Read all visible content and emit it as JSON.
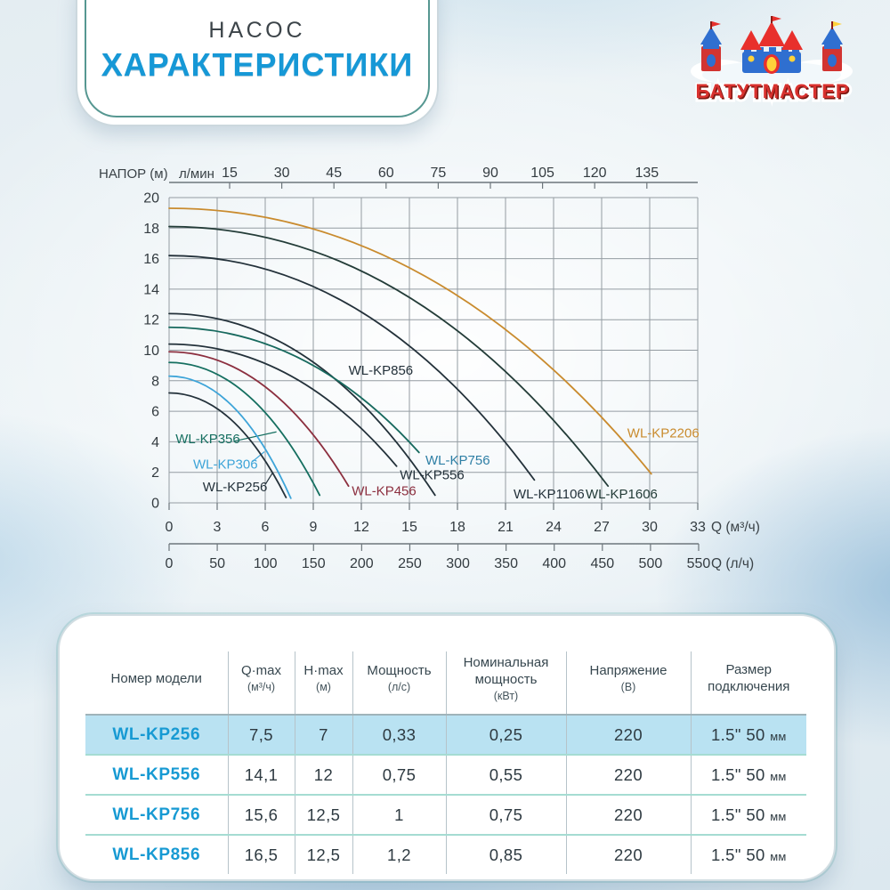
{
  "header": {
    "subtitle": "НАСОС",
    "title": "ХАРАКТЕРИСТИКИ"
  },
  "logo": {
    "text": "БАТУТМАСТЕР"
  },
  "chart_data": {
    "type": "line",
    "title": "Pump head-flow curves",
    "grid": true,
    "y_axis": {
      "label": "НАПОР (м)",
      "min": 0,
      "max": 20,
      "step": 2,
      "ticks": [
        0,
        2,
        4,
        6,
        8,
        10,
        12,
        14,
        16,
        18,
        20
      ]
    },
    "x_axis_top": {
      "label": "л/мин",
      "ticks": [
        15,
        30,
        45,
        60,
        75,
        90,
        105,
        120,
        135
      ]
    },
    "x_axis_bottom": {
      "label": "Q (м³/ч)",
      "min": 0,
      "max": 33,
      "ticks": [
        0,
        3,
        6,
        9,
        12,
        15,
        18,
        21,
        24,
        27,
        30,
        33
      ]
    },
    "x_axis_bottom2": {
      "label": "Q (л/ч)",
      "ticks": [
        0,
        50,
        100,
        150,
        200,
        250,
        300,
        350,
        400,
        450,
        500,
        550
      ]
    },
    "series": [
      {
        "name": "WL-KP2206",
        "color": "#c98b2e",
        "start_head_m": 19.3,
        "end": [
          30.1,
          1.9
        ],
        "label_pos": [
          28.6,
          4.3
        ]
      },
      {
        "name": "WL-KP1606",
        "color": "#233c38",
        "start_head_m": 18.1,
        "end": [
          27.4,
          1.1
        ],
        "label_pos": [
          26.0,
          0.3
        ]
      },
      {
        "name": "WL-KP1106",
        "color": "#23313a",
        "start_head_m": 16.2,
        "end": [
          22.8,
          1.5
        ],
        "label_pos": [
          21.5,
          0.3
        ]
      },
      {
        "name": "WL-KP856",
        "color": "#23313a",
        "start_head_m": 12.4,
        "end": [
          16.6,
          0.5
        ],
        "label_pos": [
          11.2,
          8.4
        ]
      },
      {
        "name": "WL-KP756",
        "color": "#17695e",
        "label_color": "#2e7fa5",
        "start_head_m": 11.5,
        "end": [
          15.6,
          3.3
        ],
        "label_pos": [
          16.0,
          2.5
        ]
      },
      {
        "name": "WL-KP556",
        "color": "#23313a",
        "start_head_m": 10.4,
        "end": [
          14.2,
          2.4
        ],
        "label_pos": [
          14.4,
          1.55
        ]
      },
      {
        "name": "WL-KP456",
        "color": "#8c2f3f",
        "start_head_m": 9.9,
        "end": [
          11.2,
          1.1
        ],
        "label_pos": [
          11.4,
          0.5
        ]
      },
      {
        "name": "WL-KP356",
        "color": "#156f60",
        "start_head_m": 9.2,
        "end": [
          9.4,
          0.5
        ],
        "label_pos": [
          0.4,
          3.9
        ],
        "callout": [
          [
            4.1,
            4.05
          ],
          [
            6.7,
            4.65
          ]
        ]
      },
      {
        "name": "WL-KP306",
        "color": "#3da4d8",
        "start_head_m": 8.3,
        "end": [
          7.6,
          0.3
        ],
        "label_pos": [
          1.5,
          2.25
        ],
        "callout": [
          [
            5.2,
            2.7
          ],
          [
            5.95,
            3.35
          ]
        ]
      },
      {
        "name": "WL-KP256",
        "color": "#23313a",
        "start_head_m": 7.2,
        "end": [
          7.3,
          0.35
        ],
        "label_pos": [
          2.1,
          0.75
        ],
        "callout": [
          [
            6.0,
            1.2
          ],
          [
            6.45,
            1.95
          ]
        ]
      }
    ]
  },
  "table": {
    "headers": [
      {
        "title": "Номер модели",
        "unit": ""
      },
      {
        "title": "Q·max",
        "unit": "(м³/ч)"
      },
      {
        "title": "H·max",
        "unit": "(м)"
      },
      {
        "title": "Мощность",
        "unit": "(л/с)"
      },
      {
        "title": "Номинальная мощность",
        "unit": "(кВт)"
      },
      {
        "title": "Напряжение",
        "unit": "(В)"
      },
      {
        "title": "Размер подключения",
        "unit": ""
      }
    ],
    "rows": [
      {
        "model": "WL-KP256",
        "qmax": "7,5",
        "hmax": "7",
        "power": "0,33",
        "nominal": "0,25",
        "voltage": "220",
        "size": "1.5\" 50",
        "size_unit": "мм",
        "highlight": true
      },
      {
        "model": "WL-KP556",
        "qmax": "14,1",
        "hmax": "12",
        "power": "0,75",
        "nominal": "0,55",
        "voltage": "220",
        "size": "1.5\" 50",
        "size_unit": "мм",
        "highlight": false
      },
      {
        "model": "WL-KP756",
        "qmax": "15,6",
        "hmax": "12,5",
        "power": "1",
        "nominal": "0,75",
        "voltage": "220",
        "size": "1.5\" 50",
        "size_unit": "мм",
        "highlight": false
      },
      {
        "model": "WL-KP856",
        "qmax": "16,5",
        "hmax": "12,5",
        "power": "1,2",
        "nominal": "0,85",
        "voltage": "220",
        "size": "1.5\" 50",
        "size_unit": "мм",
        "highlight": false
      }
    ]
  },
  "colors": {
    "accent_blue": "#1698d6",
    "model_blue": "#179ad3",
    "row_highlight": "#b9e2f2",
    "separator_teal": "#a5dcd2",
    "logo_red": "#d8312e",
    "grid_gray": "#949ca2"
  }
}
